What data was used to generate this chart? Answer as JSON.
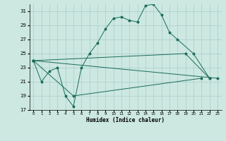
{
  "xlabel": "Humidex (Indice chaleur)",
  "background_color": "#cce8e0",
  "grid_color": "#aacccc",
  "line_color": "#1a6b5a",
  "xlim": [
    -0.5,
    23.5
  ],
  "ylim": [
    17,
    32
  ],
  "yticks": [
    17,
    19,
    21,
    23,
    25,
    27,
    29,
    31
  ],
  "xticks": [
    0,
    1,
    2,
    3,
    4,
    5,
    6,
    7,
    8,
    9,
    10,
    11,
    12,
    13,
    14,
    15,
    16,
    17,
    18,
    19,
    20,
    21,
    22,
    23
  ],
  "line1_x": [
    0,
    1,
    2,
    3,
    4,
    5,
    6,
    7,
    8,
    9,
    10,
    11,
    12,
    13,
    14,
    15,
    16,
    17,
    18,
    20,
    22
  ],
  "line1_y": [
    24,
    21,
    22.5,
    23,
    19,
    17.5,
    23,
    25,
    26.5,
    28.5,
    30,
    30.2,
    29.7,
    29.5,
    31.8,
    32,
    30.5,
    28.0,
    27.0,
    25.0,
    21.5
  ],
  "line2_x": [
    0,
    23
  ],
  "line2_y": [
    24,
    21.5
  ],
  "line3_x": [
    0,
    19,
    22
  ],
  "line3_y": [
    24,
    25,
    21.5
  ],
  "line4_x": [
    0,
    5,
    21
  ],
  "line4_y": [
    24,
    19,
    21.5
  ]
}
